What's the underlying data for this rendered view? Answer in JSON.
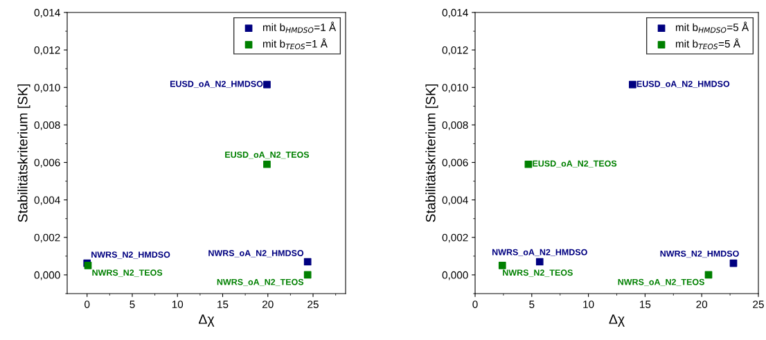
{
  "chart_data": [
    {
      "type": "scatter",
      "xlabel": "Δχ",
      "ylabel": "Stabilitätskriterium [SK]",
      "marker": "square",
      "legend": "top right",
      "grid": false,
      "xlim": [
        -2.2,
        28.6
      ],
      "xticks": [
        0,
        5,
        10,
        15,
        20,
        25
      ],
      "ylim": [
        -0.001,
        0.014
      ],
      "yticks": [
        {
          "value": 0,
          "label": "0,000"
        },
        {
          "value": 0.002,
          "label": "0,002"
        },
        {
          "value": 0.004,
          "label": "0,004"
        },
        {
          "value": 0.006,
          "label": "0,006"
        },
        {
          "value": 0.008,
          "label": "0,008"
        },
        {
          "value": 0.01,
          "label": "0,010"
        },
        {
          "value": 0.012,
          "label": "0,012"
        },
        {
          "value": 0.014,
          "label": "0,014"
        }
      ],
      "series": [
        {
          "name": "mit b$_{HMDSO}$=1 Å",
          "color": "#000080",
          "x": [
            0,
            19.9,
            24.4
          ],
          "values": [
            0.00062,
            0.01015,
            0.0007
          ]
        },
        {
          "name": "mit b$_{TEOS}$=1 Å",
          "color": "#008000",
          "x": [
            0.1,
            19.9,
            24.4
          ],
          "values": [
            0.0005,
            0.0059,
            0.0
          ]
        }
      ],
      "annotations": [
        {
          "text": "NWRS_N2_HMDSO",
          "x": 0,
          "y": 0.00062
        },
        {
          "text": "EUSD_oA_N2_HMDSO",
          "x": 19.9,
          "y": 0.01015
        },
        {
          "text": "NWRS_oA_N2_HMDSO",
          "x": 24.4,
          "y": 0.0007
        },
        {
          "text": "NWRS_N2_TEOS",
          "x": 0.1,
          "y": 0.0005
        },
        {
          "text": "EUSD_oA_N2_TEOS",
          "x": 19.9,
          "y": 0.0059
        },
        {
          "text": "NWRS_oA_N2_TEOS",
          "x": 24.4,
          "y": 0.0
        }
      ]
    },
    {
      "type": "scatter",
      "xlabel": "Δχ",
      "ylabel": "Stabilitätskriterium [SK]",
      "marker": "square",
      "legend": "top right",
      "grid": false,
      "xlim": [
        0,
        25
      ],
      "xticks": [
        0,
        5,
        10,
        15,
        20,
        25
      ],
      "ylim": [
        -0.001,
        0.014
      ],
      "yticks": [
        {
          "value": 0,
          "label": "0,000"
        },
        {
          "value": 0.002,
          "label": "0,002"
        },
        {
          "value": 0.004,
          "label": "0,004"
        },
        {
          "value": 0.006,
          "label": "0,006"
        },
        {
          "value": 0.008,
          "label": "0,008"
        },
        {
          "value": 0.01,
          "label": "0,010"
        },
        {
          "value": 0.012,
          "label": "0,012"
        },
        {
          "value": 0.014,
          "label": "0,014"
        }
      ],
      "series": [
        {
          "name": "mit b$_{HMDSO}$=5 Å",
          "color": "#000080",
          "x": [
            13.9,
            5.7,
            22.8
          ],
          "values": [
            0.01015,
            0.0007,
            0.00062
          ]
        },
        {
          "name": "mit b$_{TEOS}$=5 Å",
          "color": "#008000",
          "x": [
            2.4,
            4.7,
            20.6
          ],
          "values": [
            0.0005,
            0.0059,
            0.0
          ]
        }
      ],
      "annotations": [
        {
          "text": "EUSD_oA_N2_HMDSO",
          "x": 13.9,
          "y": 0.01015
        },
        {
          "text": "NWRS_oA_N2_HMDSO",
          "x": 5.7,
          "y": 0.0007
        },
        {
          "text": "NWRS_N2_HMDSO",
          "x": 22.8,
          "y": 0.00062
        },
        {
          "text": "NWRS_N2_TEOS",
          "x": 2.4,
          "y": 0.0005
        },
        {
          "text": "EUSD_oA_N2_TEOS",
          "x": 4.7,
          "y": 0.0059
        },
        {
          "text": "NWRS_oA_N2_TEOS",
          "x": 20.6,
          "y": 0.0
        }
      ]
    }
  ]
}
